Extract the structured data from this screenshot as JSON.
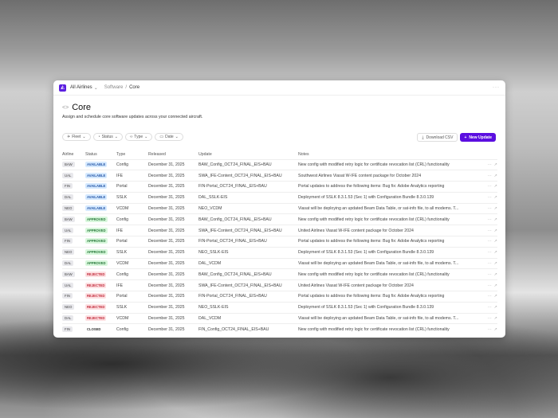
{
  "topbar": {
    "org": "All Airlines",
    "crumb1": "Software",
    "crumb_sep": "/",
    "crumb2": "Core"
  },
  "page": {
    "title": "Core",
    "subtitle": "Assign and schedule core software updates across your connected aircraft."
  },
  "filters": [
    "Fleet",
    "Status",
    "Type",
    "Date"
  ],
  "actions": {
    "download": "Download CSV",
    "new": "New Update"
  },
  "accent": "#5b0ee0",
  "columns": [
    "Airline",
    "Status",
    "Type",
    "Released",
    "Update",
    "Notes"
  ],
  "rows": [
    [
      "BAW",
      "AVAILABLE",
      "Config",
      "December 31, 2025",
      "BAW_Config_OCT24_FINAL_EIS+BAU",
      "New config with modified retry logic for certificate revocation list (CRL) functionality"
    ],
    [
      "UAL",
      "AVAILABLE",
      "IFE",
      "December 31, 2025",
      "SWA_IFE-Content_OCT24_FINAL_EIS+BAU",
      "Southwest Airlines Viasat W-IFE content package for October 2024"
    ],
    [
      "FIN",
      "AVAILABLE",
      "Portal",
      "December 31, 2025",
      "FIN-Portal_OCT24_FINAL_EIS+BAU",
      "Portal updates to address the following items: Bug fix: Adobe Analytics reporting"
    ],
    [
      "DAL",
      "AVAILABLE",
      "SSLK",
      "December 31, 2025",
      "DAL_SSLK-EIS",
      "Deployment of SSLK 8.3.1.53 (Sec 1) with Configuration Bundle 8.3.0.139"
    ],
    [
      "NEO",
      "AVAILABLE",
      "VCDM",
      "December 31, 2025",
      "NEO_VCDM",
      "Viasat will be deploying an updated Beam Data Table, or sat-info file, to all modems. T..."
    ],
    [
      "BAW",
      "APPROVED",
      "Config",
      "December 31, 2025",
      "BAW_Config_OCT24_FINAL_EIS+BAU",
      "New config with modified retry logic for certificate revocation list (CRL) functionality"
    ],
    [
      "UAL",
      "APPROVED",
      "IFE",
      "December 31, 2025",
      "SWA_IFE-Content_OCT24_FINAL_EIS+BAU",
      "United Airlines Viasat W-IFE content package for October 2024"
    ],
    [
      "FIN",
      "APPROVED",
      "Portal",
      "December 31, 2025",
      "FIN-Portal_OCT24_FINAL_EIS+BAU",
      "Portal updates to address the following items: Bug fix: Adobe Analytics reporting"
    ],
    [
      "NEO",
      "APPROVED",
      "SSLK",
      "December 31, 2025",
      "NEO_SSLK-EIS",
      "Deployment of SSLK 8.3.1.53 (Sec 1) with Configuration Bundle 8.3.0.139"
    ],
    [
      "DAL",
      "APPROVED",
      "VCDM",
      "December 31, 2025",
      "DAL_VCDM",
      "Viasat will be deploying an updated Beam Data Table, or sat-info file, to all modems. T..."
    ],
    [
      "BAW",
      "REJECTED",
      "Config",
      "December 31, 2025",
      "BAW_Config_OCT24_FINAL_EIS+BAU",
      "New config with modified retry logic for certificate revocation list (CRL) functionality"
    ],
    [
      "UAL",
      "REJECTED",
      "IFE",
      "December 31, 2025",
      "SWA_IFE-Content_OCT24_FINAL_EIS+BAU",
      "United Airlines Viasat W-IFE content package for October 2024"
    ],
    [
      "FIN",
      "REJECTED",
      "Portal",
      "December 31, 2025",
      "FIN-Portal_OCT24_FINAL_EIS+BAU",
      "Portal updates to address the following items: Bug fix: Adobe Analytics reporting"
    ],
    [
      "NEO",
      "REJECTED",
      "SSLK",
      "December 31, 2025",
      "NEO_SSLK-EIS",
      "Deployment of SSLK 8.3.1.53 (Sec 1) with Configuration Bundle 8.3.0.139"
    ],
    [
      "DAL",
      "REJECTED",
      "VCDM",
      "December 31, 2025",
      "DAL_VCDM",
      "Viasat will be deploying an updated Beam Data Table, or sat-info file, to all modems. T..."
    ],
    [
      "FIN",
      "CLOSED",
      "Config",
      "December 31, 2025",
      "FIN_Config_OCT24_FINAL_EIS+BAU",
      "New config with modified retry logic for certificate revocation list (CRL) functionality"
    ]
  ]
}
